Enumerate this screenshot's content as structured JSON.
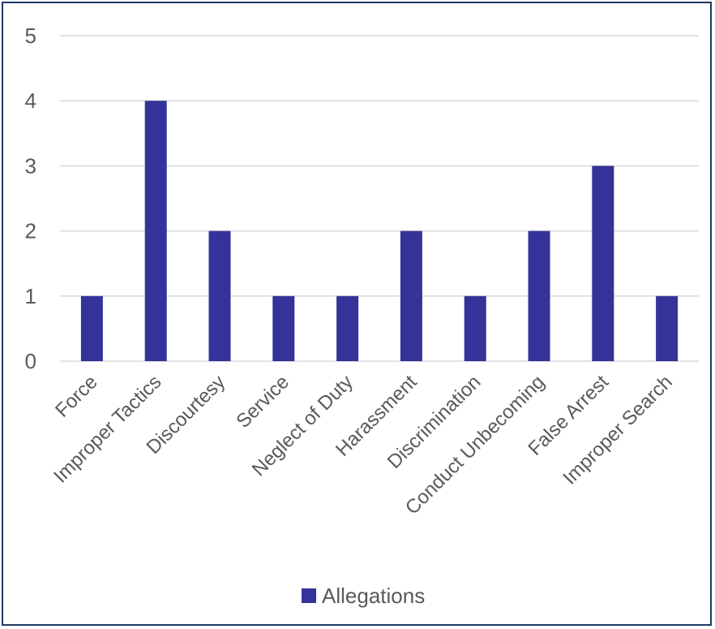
{
  "chart_data": {
    "type": "bar",
    "title": "",
    "xlabel": "",
    "ylabel": "",
    "categories": [
      "Force",
      "Improper Tactics",
      "Discourtesy",
      "Service",
      "Neglect of Duty",
      "Harassment",
      "Discrimination",
      "Conduct Unbecoming",
      "False Arrest",
      "Improper Search"
    ],
    "series": [
      {
        "name": "Allegations",
        "values": [
          1,
          4,
          2,
          1,
          1,
          2,
          1,
          2,
          3,
          1
        ],
        "color": "#333399"
      }
    ],
    "ylim": [
      0,
      5
    ],
    "yticks": [
      "0",
      "1",
      "2",
      "3",
      "4",
      "5"
    ],
    "grid": true,
    "gridColor": "#d9d9d9",
    "legend": "bottom"
  }
}
